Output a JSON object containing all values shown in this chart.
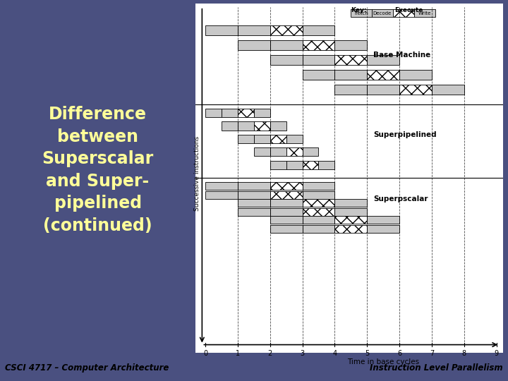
{
  "title_left": "Difference\nbetween\nSuperscalar\nand Super-\npipelined\n(continued)",
  "left_bg_color": "#4a5080",
  "right_bg_color": "#ffffff",
  "title_color": "#ffff99",
  "bottom_left_text": "CSCI 4717 – Computer Architecture",
  "bottom_right_text": "Instruction Level Parallelism",
  "bottom_bg_color": "#ffffcc",
  "xlabel": "Time in base cycles",
  "ylabel": "Successive instructions",
  "x_ticks": [
    0,
    1,
    2,
    3,
    4,
    5,
    6,
    7,
    8,
    9
  ],
  "gray_color": "#c8c8c8",
  "white_color": "#ffffff",
  "label_base": "Base Machine",
  "label_super_pipe": "Superpipelined",
  "label_superscalar": "Superpscalar"
}
